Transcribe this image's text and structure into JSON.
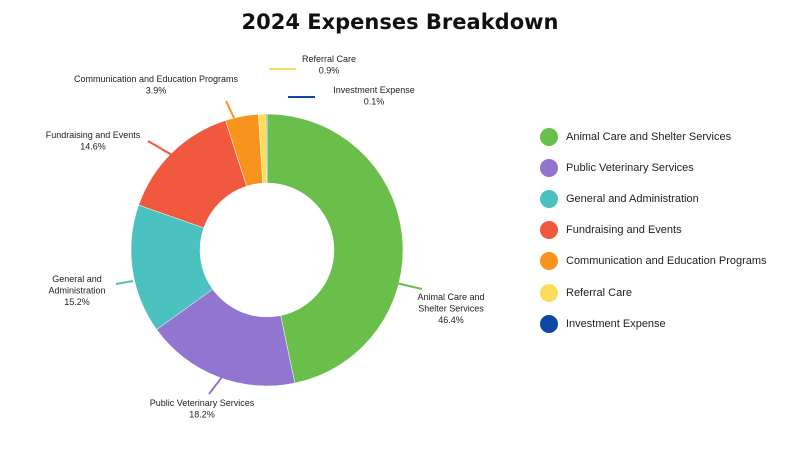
{
  "chart_data": {
    "type": "pie",
    "donut": true,
    "title": "2024 Expenses Breakdown",
    "legend_position": "right",
    "categories": [
      "Animal Care and Shelter Services",
      "Public Veterinary Services",
      "General and Administration",
      "Fundraising and Events",
      "Communication and Education Programs",
      "Referral Care",
      "Investment Expense"
    ],
    "values": [
      46.4,
      18.2,
      15.2,
      14.6,
      3.9,
      0.9,
      0.1
    ],
    "value_labels": [
      "46.4%",
      "18.2%",
      "15.2%",
      "14.6%",
      "3.9%",
      "0.9%",
      "0.1%"
    ],
    "colors": [
      "#6abf4b",
      "#9275d1",
      "#4bc2bf",
      "#f0593e",
      "#f7941d",
      "#fddc5c",
      "#0d47a1"
    ]
  }
}
